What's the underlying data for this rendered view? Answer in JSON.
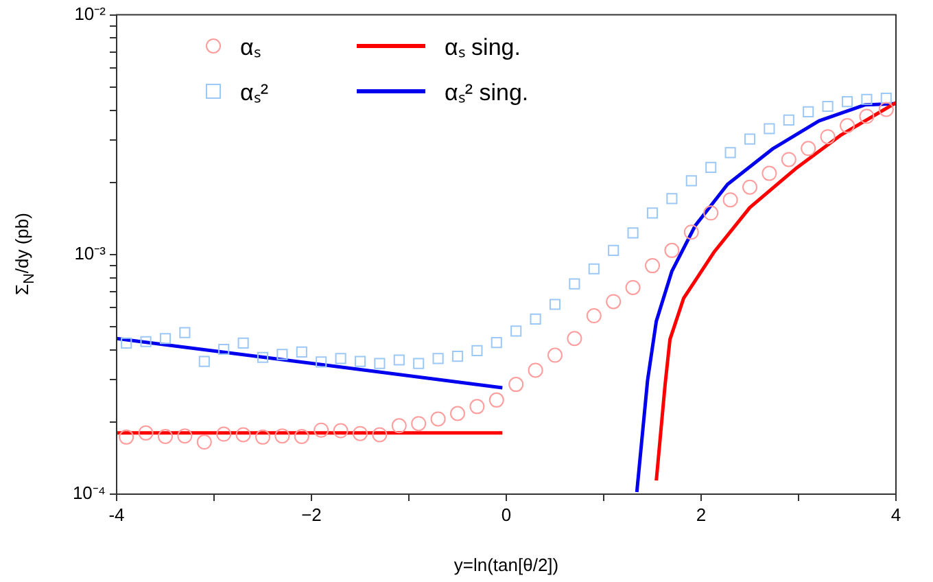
{
  "chart_data": {
    "type": "scatter",
    "xlabel": "y=ln(tan[θ/2])",
    "ylabel": "Σ$_{N}$/dy (pb)",
    "log": "y",
    "grid": false,
    "legend": "top left",
    "xlim": [
      -4,
      4
    ],
    "xticks": [
      -4,
      {
        "value": -3,
        "label": null
      },
      {
        "value": -2,
        "label": "−2"
      },
      {
        "value": -1,
        "label": null
      },
      0,
      {
        "value": 1,
        "label": null
      },
      2,
      {
        "value": 3,
        "label": null
      },
      4
    ],
    "ylim": [
      0.0001,
      0.01
    ],
    "yticks": [
      {
        "value": 0.0001,
        "label": "10⁻⁴"
      },
      {
        "value": 0.0002,
        "label": null
      },
      {
        "value": 0.0003,
        "label": null
      },
      {
        "value": 0.0004,
        "label": null
      },
      {
        "value": 0.0005,
        "label": null
      },
      {
        "value": 0.0006,
        "label": null
      },
      {
        "value": 0.0007,
        "label": null
      },
      {
        "value": 0.0008,
        "label": null
      },
      {
        "value": 0.0009,
        "label": null
      },
      {
        "value": 0.001,
        "label": "10⁻³"
      },
      {
        "value": 0.002,
        "label": null
      },
      {
        "value": 0.003,
        "label": null
      },
      {
        "value": 0.004,
        "label": null
      },
      {
        "value": 0.005,
        "label": null
      },
      {
        "value": 0.006,
        "label": null
      },
      {
        "value": 0.007,
        "label": null
      },
      {
        "value": 0.008,
        "label": null
      },
      {
        "value": 0.009,
        "label": null
      },
      {
        "value": 0.01,
        "label": "10⁻²"
      }
    ],
    "x": [
      -3.9,
      -3.7,
      -3.5,
      -3.3,
      -3.1,
      -2.9,
      -2.7,
      -2.5,
      -2.3,
      -2.1,
      -1.9,
      -1.7,
      -1.5,
      -1.3,
      -1.1,
      -0.9,
      -0.7,
      -0.5,
      -0.3,
      -0.1,
      0.1,
      0.3,
      0.5,
      0.7,
      0.9,
      1.1,
      1.3,
      1.5,
      1.7,
      1.9,
      2.1,
      2.3,
      2.5,
      2.7,
      2.9,
      3.1,
      3.3,
      3.5,
      3.7,
      3.9
    ],
    "series": [
      {
        "name": "αₛ",
        "marker": "circle",
        "color": "#ff9c9c",
        "values": [
          0.000173,
          0.00018,
          0.000174,
          0.000175,
          0.000165,
          0.000178,
          0.000177,
          0.000173,
          0.000175,
          0.000174,
          0.000185,
          0.000184,
          0.000179,
          0.000177,
          0.000193,
          0.000197,
          0.000206,
          0.000217,
          0.000232,
          0.000247,
          0.000287,
          0.000329,
          0.00038,
          0.000446,
          0.000555,
          0.000636,
          0.000728,
          0.000898,
          0.00104,
          0.00124,
          0.00149,
          0.00169,
          0.00191,
          0.00218,
          0.00249,
          0.00277,
          0.0031,
          0.00345,
          0.00377,
          0.00403
        ]
      },
      {
        "name": "αₛ²",
        "marker": "square",
        "color": "#9cc8f5",
        "values": [
          0.000427,
          0.000433,
          0.000446,
          0.000472,
          0.000358,
          0.000402,
          0.000427,
          0.000372,
          0.000383,
          0.000392,
          0.000356,
          0.000368,
          0.000358,
          0.000351,
          0.000363,
          0.000351,
          0.000368,
          0.000376,
          0.000397,
          0.000429,
          0.000479,
          0.000538,
          0.000619,
          0.000754,
          0.000871,
          0.00104,
          0.00123,
          0.00149,
          0.00171,
          0.00203,
          0.00231,
          0.00266,
          0.00303,
          0.00335,
          0.00364,
          0.00394,
          0.00415,
          0.00434,
          0.00444,
          0.00449
        ]
      },
      {
        "name": "αₛ sing.",
        "type": "line",
        "marker": "none",
        "line_style": "solid",
        "color": "#ff0000",
        "x": [
          -4,
          -0.04
        ],
        "values": [
          0.00018,
          0.00018
        ]
      },
      {
        "type": "line",
        "marker": "none",
        "line_style": "solid",
        "color": "#ff0000",
        "x": [
          1.54,
          1.63,
          1.68,
          1.82,
          2.13,
          2.5,
          2.97,
          3.44,
          4
        ],
        "values": [
          0.000114,
          0.000286,
          0.000442,
          0.000656,
          0.00102,
          0.00157,
          0.00228,
          0.00316,
          0.0043
        ]
      },
      {
        "name": "αₛ² sing.",
        "type": "line",
        "marker": "none",
        "line_style": "solid",
        "color": "#0000ee",
        "x": [
          -4,
          -0.04
        ],
        "values": [
          0.000446,
          0.000278
        ]
      },
      {
        "type": "line",
        "marker": "none",
        "line_style": "solid",
        "color": "#0000ee",
        "x": [
          1.34,
          1.45,
          1.54,
          1.7,
          1.94,
          2.27,
          2.74,
          3.21,
          3.68,
          4
        ],
        "values": [
          0.000102,
          0.000298,
          0.000527,
          0.000852,
          0.00132,
          0.00196,
          0.00277,
          0.00361,
          0.00421,
          0.00426
        ]
      }
    ]
  }
}
